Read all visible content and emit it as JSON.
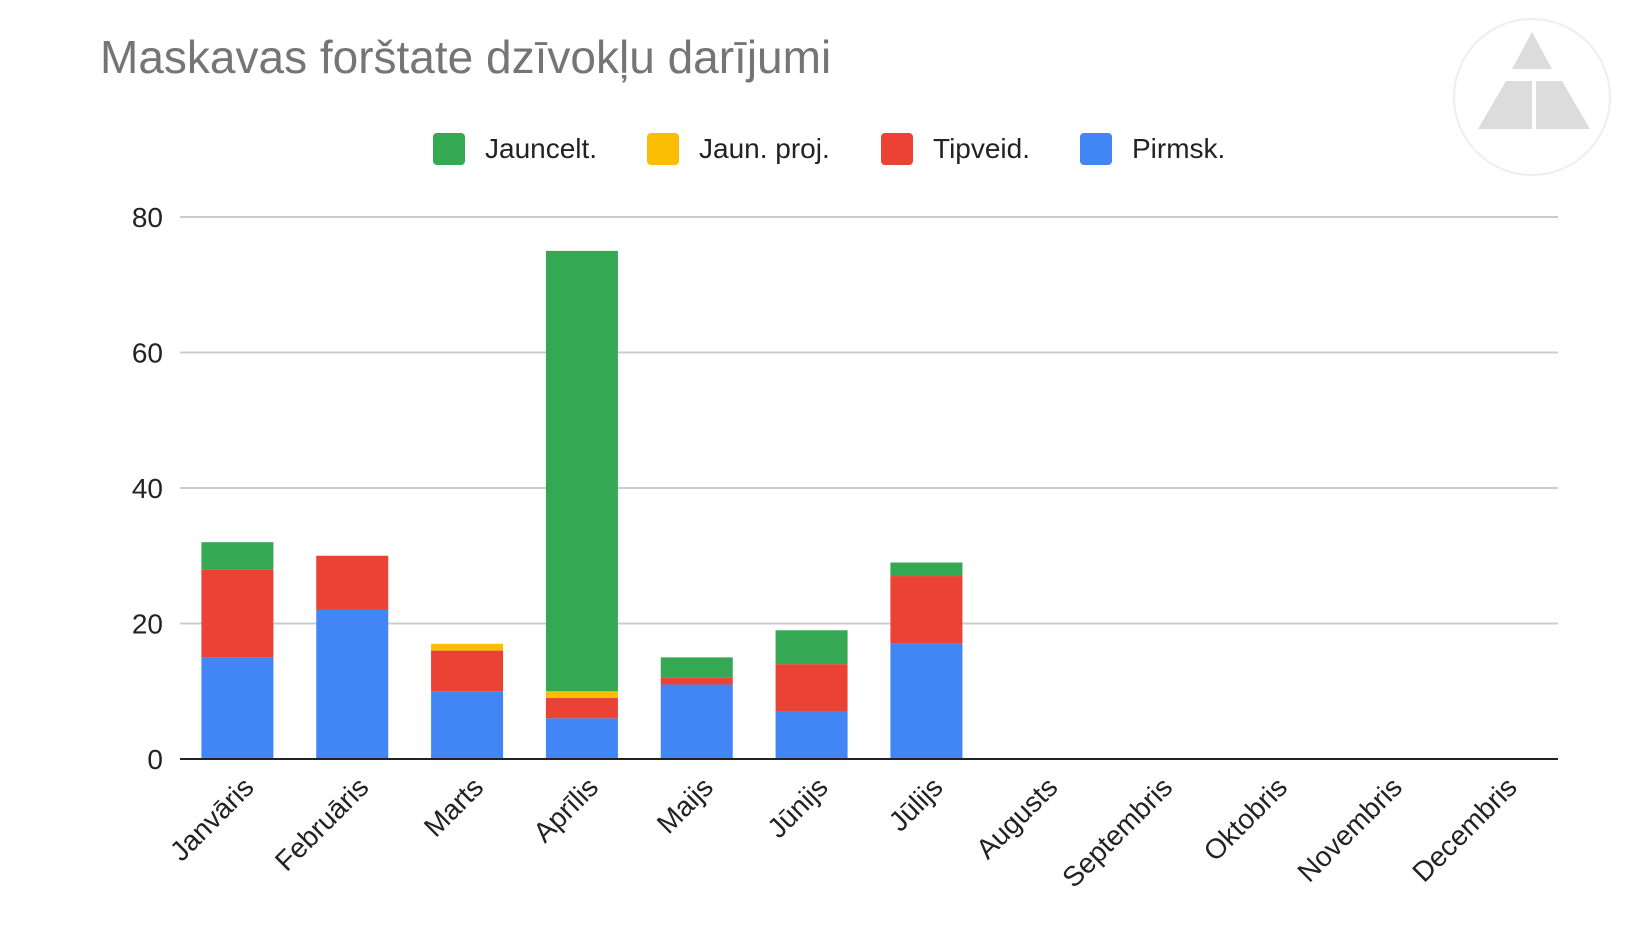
{
  "title": "Maskavas forštate dzīvokļu darījumi",
  "logo_icon": "triangle-logo-icon",
  "chart_data": {
    "type": "bar",
    "stacked": true,
    "title": "Maskavas forštate dzīvokļu darījumi",
    "xlabel": "",
    "ylabel": "",
    "ylim": [
      0,
      80
    ],
    "yticks": [
      0,
      20,
      40,
      60,
      80
    ],
    "grid": true,
    "legend_position": "top",
    "categories": [
      "Janvāris",
      "Februāris",
      "Marts",
      "Aprīlis",
      "Maijs",
      "Jūnijs",
      "Jūlijs",
      "Augusts",
      "Septembris",
      "Oktobris",
      "Novembris",
      "Decembris"
    ],
    "series": [
      {
        "name": "Pirmsk.",
        "color": "#4285F4",
        "values": [
          15,
          22,
          10,
          6,
          11,
          7,
          17,
          0,
          0,
          0,
          0,
          0
        ]
      },
      {
        "name": "Tipveid.",
        "color": "#EA4335",
        "values": [
          13,
          8,
          6,
          3,
          1,
          7,
          10,
          0,
          0,
          0,
          0,
          0
        ]
      },
      {
        "name": "Jaun. proj.",
        "color": "#FBBC04",
        "values": [
          0,
          0,
          1,
          1,
          0,
          0,
          0,
          0,
          0,
          0,
          0,
          0
        ]
      },
      {
        "name": "Jauncelt.",
        "color": "#34A853",
        "values": [
          4,
          0,
          0,
          65,
          3,
          5,
          2,
          0,
          0,
          0,
          0,
          0
        ]
      }
    ],
    "legend_order": [
      "Jauncelt.",
      "Jaun. proj.",
      "Tipveid.",
      "Pirmsk."
    ]
  }
}
